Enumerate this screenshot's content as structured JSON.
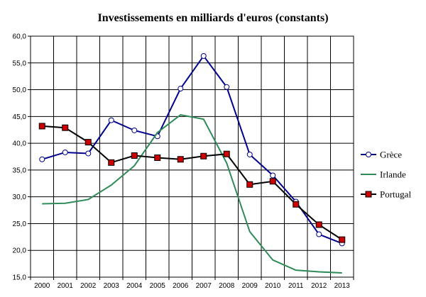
{
  "chart_data": {
    "type": "line",
    "title": "Investissements en milliards d'euros (constants)",
    "xlabel": "",
    "ylabel": "",
    "categories": [
      "2000",
      "2001",
      "2002",
      "2003",
      "2004",
      "2005",
      "2006",
      "2007",
      "2008",
      "2009",
      "2010",
      "2011",
      "2012",
      "2013"
    ],
    "y_ticks": [
      "60,0",
      "55,0",
      "50,0",
      "45,0",
      "40,0",
      "35,0",
      "30,0",
      "25,0",
      "20,0",
      "15,0"
    ],
    "ylim": [
      15,
      60
    ],
    "grid": true,
    "legend_position": "right",
    "series": [
      {
        "name": "Grèce",
        "color": "#00008B",
        "marker": "circle",
        "values": [
          37.0,
          38.3,
          38.1,
          44.3,
          42.4,
          41.3,
          50.2,
          56.3,
          50.5,
          37.9,
          34.0,
          29.1,
          23.0,
          21.3
        ]
      },
      {
        "name": "Irlande",
        "color": "#2E8B57",
        "marker": "none",
        "values": [
          28.7,
          28.8,
          29.5,
          32.2,
          35.8,
          42.0,
          45.3,
          44.5,
          36.3,
          23.5,
          18.2,
          16.3,
          16.0,
          15.8
        ]
      },
      {
        "name": "Portugal",
        "color": "#000000",
        "marker": "square",
        "marker_color": "#CC0000",
        "values": [
          43.2,
          42.9,
          40.2,
          36.4,
          37.7,
          37.3,
          37.0,
          37.6,
          38.0,
          32.3,
          32.9,
          28.6,
          24.8,
          22.0
        ]
      }
    ]
  }
}
